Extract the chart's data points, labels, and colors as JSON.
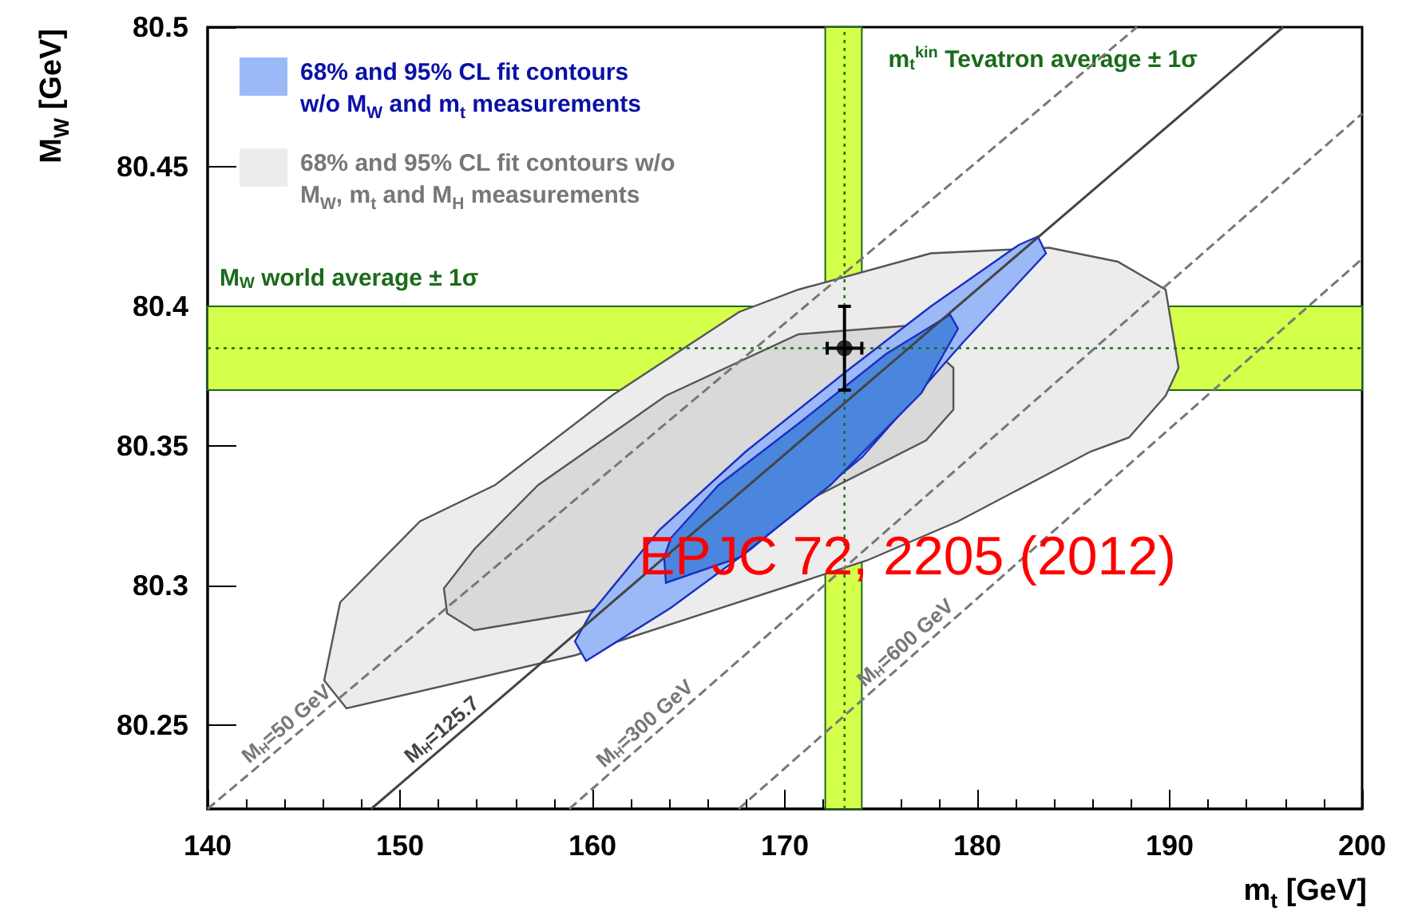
{
  "chart_data": {
    "type": "area",
    "xlabel": "m$_{t}$ [GeV]",
    "ylabel": "M$_{W}$ [GeV]",
    "xlim": [
      140,
      200
    ],
    "xticks": [
      140,
      150,
      160,
      170,
      180,
      190,
      200
    ],
    "ylim": [
      80.22,
      80.5
    ],
    "yticks": [
      80.25,
      80.3,
      80.35,
      80.4,
      80.45,
      80.5
    ],
    "grid": false,
    "legend": "top left",
    "annotations": [
      "EPJC 72, 2205 (2012)"
    ],
    "bands": [
      {
        "axis": "y",
        "from": 80.37,
        "to": 80.4,
        "label": "M$_{W}$ world average ± 1σ",
        "color": "#d4ff4a"
      },
      {
        "axis": "x",
        "from": 172.1,
        "to": 174.0,
        "label": "m$_{t}$$^{kin}$ Tevatron average ± 1σ",
        "color": "#d4ff4a"
      }
    ],
    "ref_lines": [
      {
        "axis": "y",
        "value": 80.385,
        "line_style": "dotted",
        "color": "#1a6b1a"
      },
      {
        "axis": "x",
        "value": 173.1,
        "line_style": "dotted",
        "color": "#1a6b1a"
      }
    ],
    "series": [
      {
        "name": "68% and 95% CL fit contours w/o M$_{W}$, m$_{t}$ and M$_{H}$ measurements",
        "color": "#ececec",
        "x": [
          146.06,
          147.22,
          159.09,
          170.71,
          174.27,
          179.0,
          185.89,
          187.88,
          189.79,
          190.46,
          189.79,
          187.3,
          183.73,
          177.59,
          170.71,
          167.63,
          161.0,
          154.94,
          151.04,
          146.89
        ],
        "values": [
          80.266,
          80.256,
          80.275,
          80.301,
          80.309,
          80.323,
          80.348,
          80.353,
          80.368,
          80.378,
          80.406,
          80.416,
          80.421,
          80.419,
          80.406,
          80.398,
          80.368,
          80.336,
          80.323,
          80.294
        ]
      },
      {
        "color": "#d9d9d9",
        "x": [
          152.45,
          153.86,
          159.92,
          177.34,
          178.76,
          178.76,
          176.27,
          170.71,
          163.82,
          157.18,
          153.86,
          152.28
        ],
        "values": [
          80.29,
          80.284,
          80.291,
          80.352,
          80.363,
          80.378,
          80.393,
          80.39,
          80.368,
          80.336,
          80.313,
          80.299
        ]
      },
      {
        "name": "68% and 95% CL fit contours w/o M$_{W}$ and m$_{t}$ measurements",
        "color": "#9bb9f7",
        "x": [
          159.67,
          164.07,
          168.22,
          174.02,
          179.25,
          183.57,
          183.15,
          182.16,
          177.59,
          173.44,
          167.97,
          163.49,
          159.92,
          159.09
        ],
        "values": [
          80.273,
          80.292,
          80.313,
          80.346,
          80.387,
          80.419,
          80.425,
          80.422,
          80.4,
          80.378,
          80.348,
          80.32,
          80.29,
          80.28
        ]
      },
      {
        "color": "#4a86dd",
        "x": [
          163.82,
          167.63,
          172.37,
          177.1,
          179.0,
          178.59,
          175.27,
          170.71,
          166.56,
          164.07,
          163.73
        ],
        "values": [
          80.301,
          80.31,
          80.336,
          80.369,
          80.392,
          80.397,
          80.383,
          80.358,
          80.336,
          80.317,
          80.31
        ]
      },
      {
        "type": "line",
        "name": "M$_{H}$=50 GeV",
        "color": "#777777",
        "line_style": "dashed",
        "x": [
          140,
          188.3
        ],
        "values": [
          80.22,
          80.5
        ]
      },
      {
        "type": "line",
        "name": "M$_{H}$=125.7",
        "color": "#444444",
        "line_style": "solid",
        "x": [
          148.5,
          195.9
        ],
        "values": [
          80.22,
          80.5
        ]
      },
      {
        "type": "line",
        "name": "M$_{H}$=300 GeV",
        "color": "#777777",
        "line_style": "dashed",
        "x": [
          158.8,
          200
        ],
        "values": [
          80.22,
          80.469
        ]
      },
      {
        "type": "line",
        "name": "M$_{H}$=600 GeV",
        "color": "#777777",
        "line_style": "dashed",
        "x": [
          167.6,
          200
        ],
        "values": [
          80.22,
          80.417
        ]
      },
      {
        "type": "scatter",
        "color": "#000000",
        "marker": "circle",
        "x": [
          173.1
        ],
        "values": [
          80.385
        ],
        "errors": [
          0.015
        ],
        "xerrors": [
          0.9
        ]
      }
    ]
  }
}
